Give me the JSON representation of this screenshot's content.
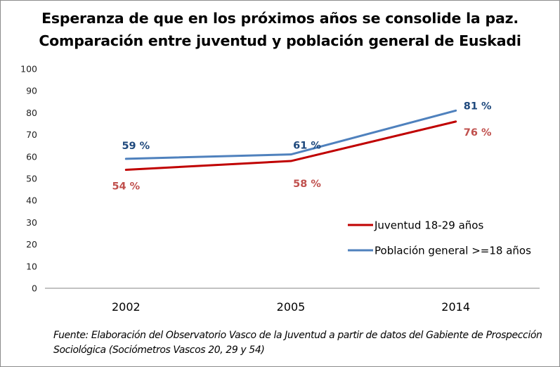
{
  "chart_data": {
    "type": "line",
    "title": "Esperanza de que en los próximos años se consolide la paz.",
    "subtitle": "Comparación entre juventud y población general de Euskadi",
    "categories": [
      "2002",
      "2005",
      "2014"
    ],
    "ylim": [
      0,
      100
    ],
    "yticks": [
      0,
      10,
      20,
      30,
      40,
      50,
      60,
      70,
      80,
      90,
      100
    ],
    "xlabel": "",
    "ylabel": "",
    "grid": false,
    "legend_position": "right",
    "series": [
      {
        "name": "Juventud 18-29 años",
        "color": "#c00000",
        "label_color": "#c0504d",
        "values": [
          54,
          58,
          76
        ],
        "labels": [
          "54 %",
          "58 %",
          "76 %"
        ],
        "label_position": "below"
      },
      {
        "name": "Población general >=18 años",
        "color": "#4f81bd",
        "label_color": "#1f497d",
        "values": [
          59,
          61,
          81
        ],
        "labels": [
          "59 %",
          "61 %",
          "81 %"
        ],
        "label_position": "above"
      }
    ],
    "source": "Fuente: Elaboración del Observatorio Vasco de la Juventud a partir de datos del Gabiente de Prospección Sociológica (Sociómetros Vascos 20, 29 y 54)"
  }
}
